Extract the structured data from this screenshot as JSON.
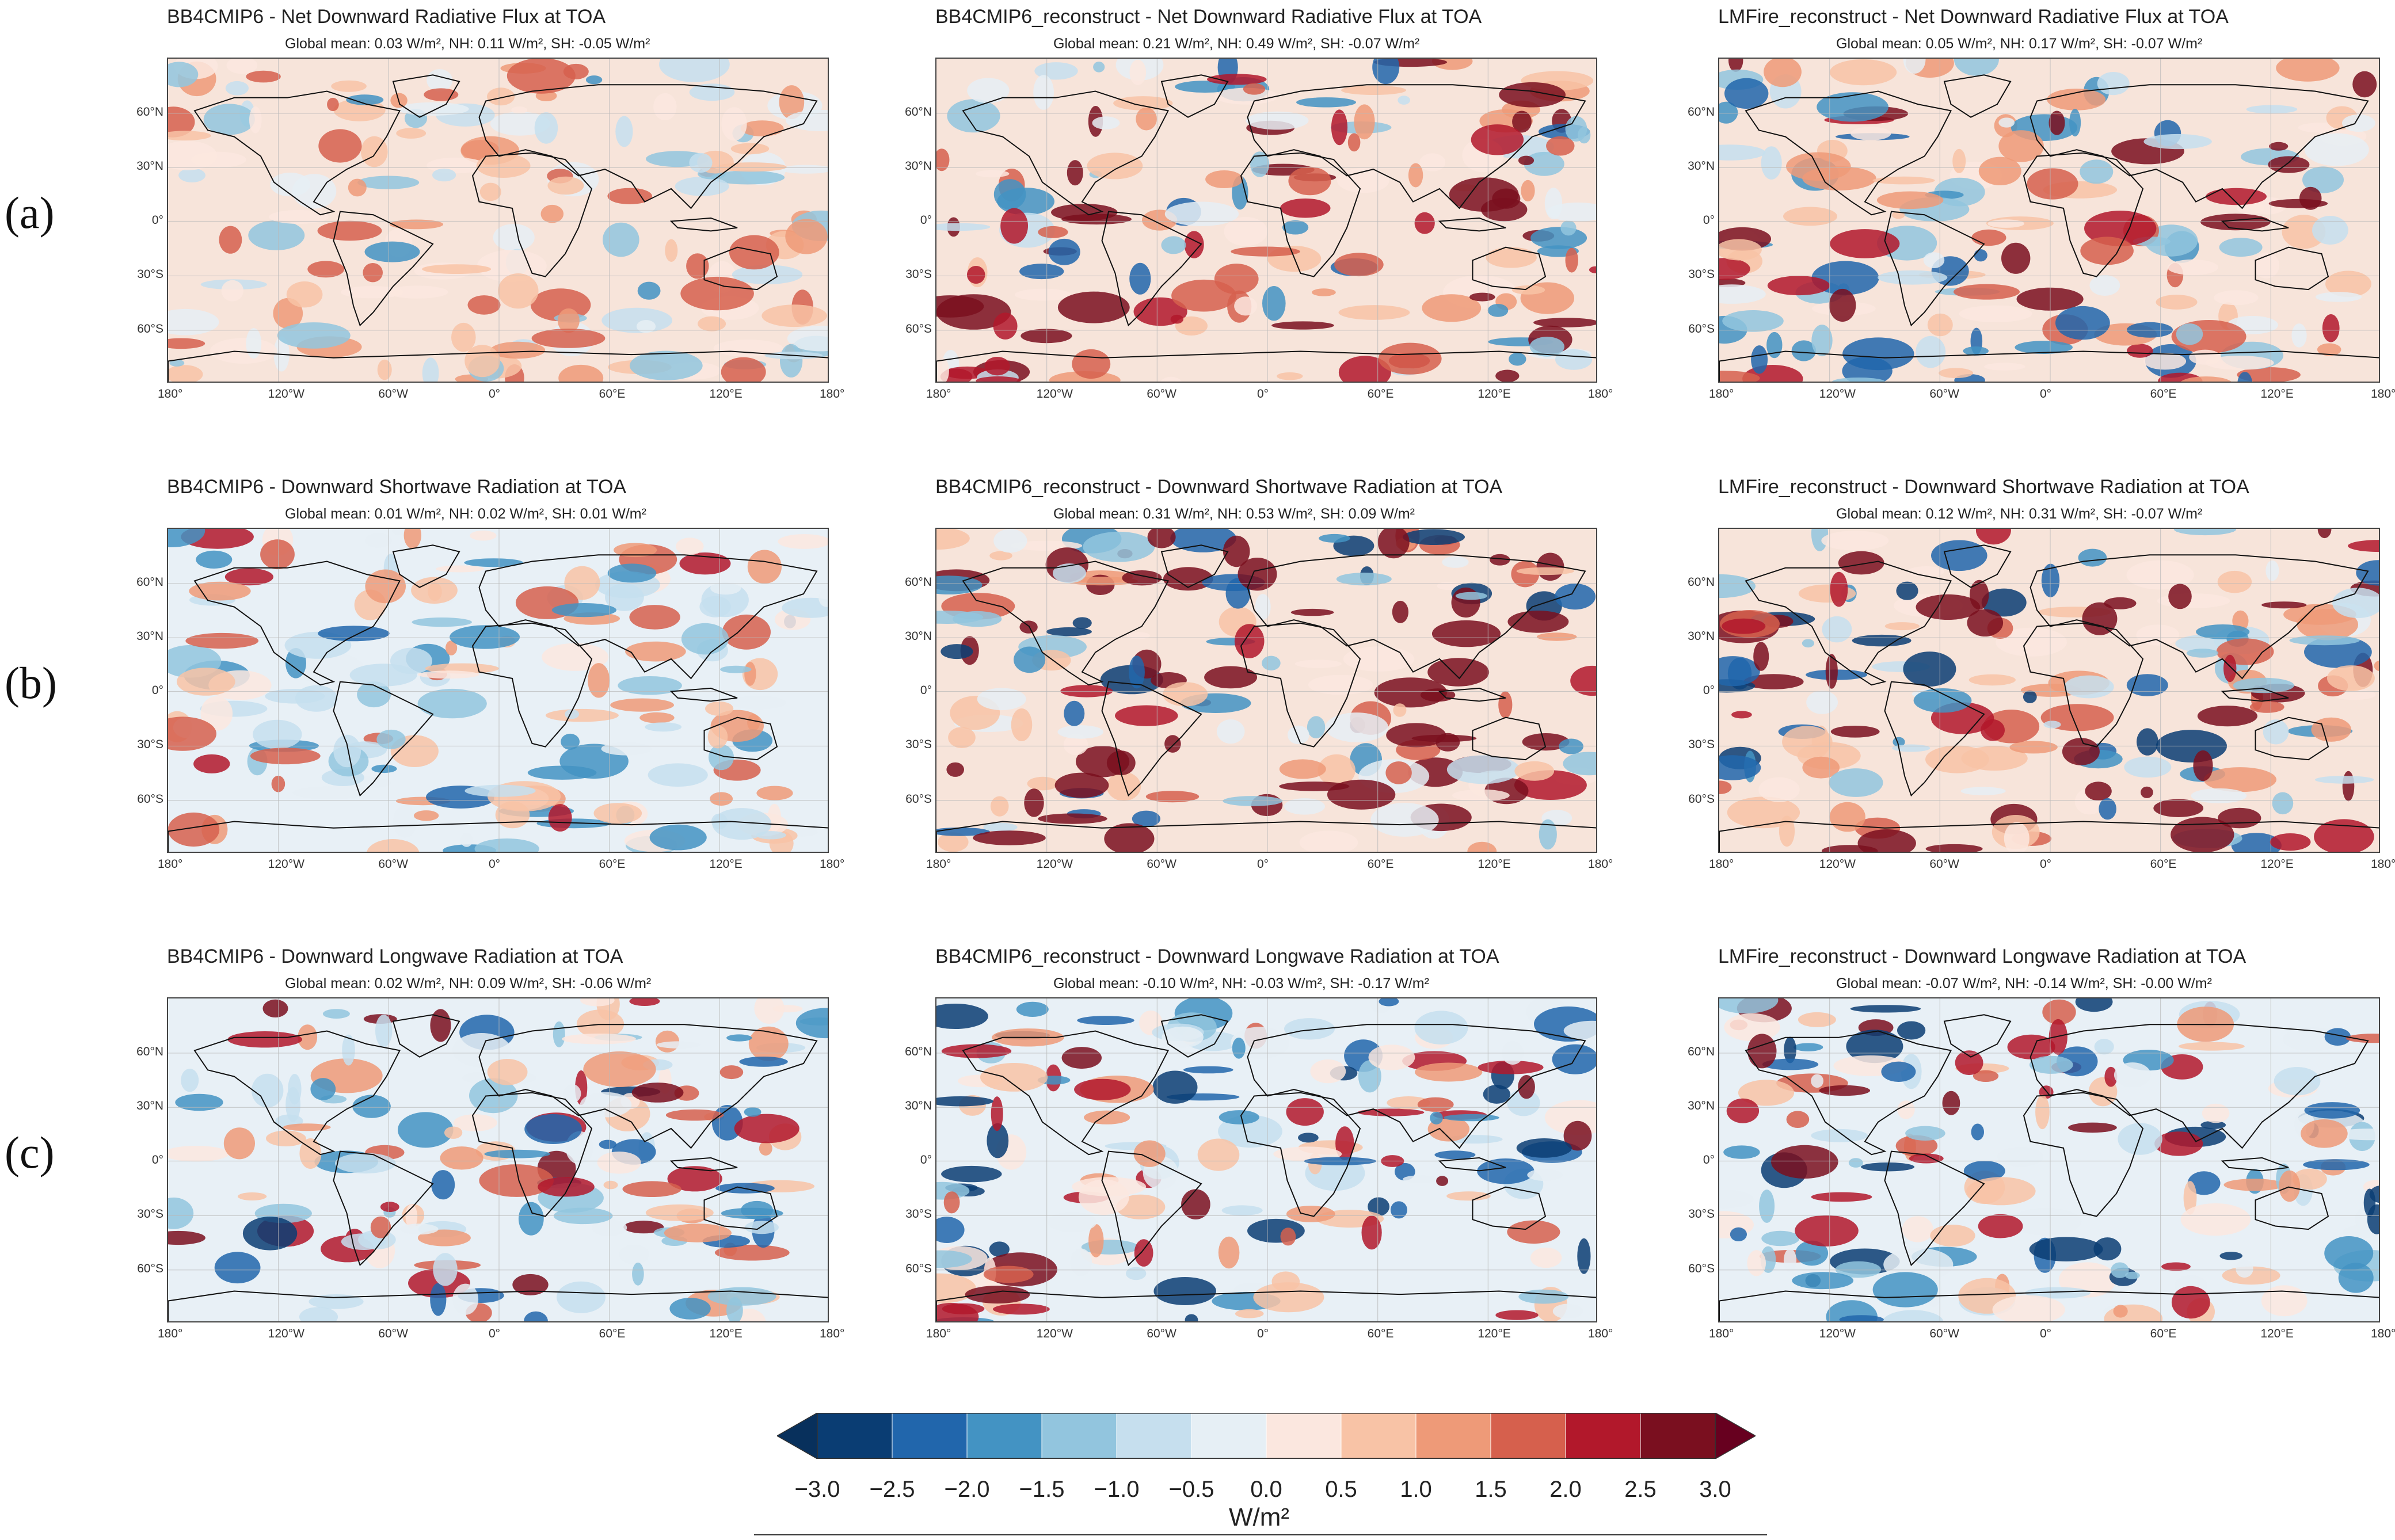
{
  "rows": [
    {
      "label": "(a)"
    },
    {
      "label": "(b)"
    },
    {
      "label": "(c)"
    }
  ],
  "panels": [
    {
      "title": "BB4CMIP6 - Net Downward Radiative Flux at TOA",
      "subtitle": "Global mean: 0.03 W/m²,  NH: 0.11 W/m²,  SH: -0.05 W/m²"
    },
    {
      "title": "BB4CMIP6_reconstruct - Net Downward Radiative Flux at TOA",
      "subtitle": "Global mean: 0.21 W/m²,  NH: 0.49 W/m²,  SH: -0.07 W/m²"
    },
    {
      "title": "LMFire_reconstruct - Net Downward Radiative Flux at TOA",
      "subtitle": "Global mean: 0.05 W/m²,  NH: 0.17 W/m²,  SH: -0.07 W/m²"
    },
    {
      "title": "BB4CMIP6 - Downward Shortwave Radiation at TOA",
      "subtitle": "Global mean: 0.01 W/m²,  NH: 0.02 W/m²,  SH: 0.01 W/m²"
    },
    {
      "title": "BB4CMIP6_reconstruct - Downward Shortwave Radiation at TOA",
      "subtitle": "Global mean: 0.31 W/m²,  NH: 0.53 W/m²,  SH: 0.09 W/m²"
    },
    {
      "title": "LMFire_reconstruct - Downward Shortwave Radiation at TOA",
      "subtitle": "Global mean: 0.12 W/m²,  NH: 0.31 W/m²,  SH: -0.07 W/m²"
    },
    {
      "title": "BB4CMIP6 - Downward Longwave Radiation at TOA",
      "subtitle": "Global mean: 0.02 W/m²,  NH: 0.09 W/m²,  SH: -0.06 W/m²"
    },
    {
      "title": "BB4CMIP6_reconstruct - Downward Longwave Radiation at TOA",
      "subtitle": "Global mean: -0.10 W/m²,  NH: -0.03 W/m²,  SH: -0.17 W/m²"
    },
    {
      "title": "LMFire_reconstruct - Downward Longwave Radiation at TOA",
      "subtitle": "Global mean: -0.07 W/m²,  NH: -0.14 W/m²,  SH: -0.00 W/m²"
    }
  ],
  "lat_ticks": [
    "60°N",
    "30°N",
    "0°",
    "30°S",
    "60°S"
  ],
  "lon_ticks": [
    "180°",
    "120°W",
    "60°W",
    "0°",
    "60°E",
    "120°E",
    "180°"
  ],
  "colorbar": {
    "ticks": [
      "−3.0",
      "−2.5",
      "−2.0",
      "−1.5",
      "−1.0",
      "−0.5",
      "0.0",
      "0.5",
      "1.0",
      "1.5",
      "2.0",
      "2.5",
      "3.0"
    ],
    "unit": "W/m²",
    "colors": [
      "#0a3d73",
      "#2166ac",
      "#4393c3",
      "#92c5de",
      "#c6dfee",
      "#e6eff5",
      "#fbe7df",
      "#f8c3a6",
      "#ee9a78",
      "#d6604d",
      "#b2182b",
      "#7a0f1f"
    ],
    "under_color": "#08305c",
    "over_color": "#67001f"
  }
}
